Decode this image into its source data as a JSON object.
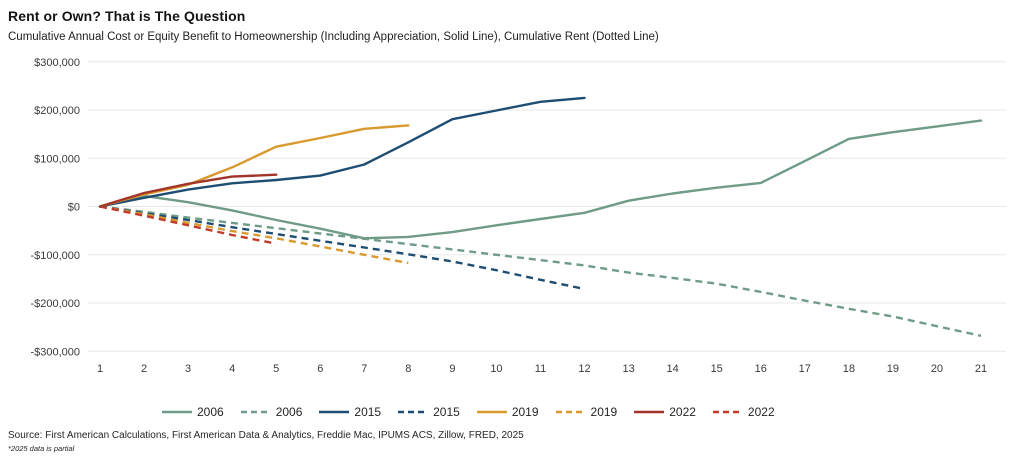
{
  "header": {
    "title": "Rent or Own? That is The Question",
    "subtitle": "Cumulative Annual Cost or Equity Benefit to Homeownership (Including Appreciation, Solid Line), Cumulative Rent (Dotted Line)"
  },
  "footer": {
    "source": "Source: First American Calculations, First American Data & Analytics, Freddie Mac, IPUMS ACS, Zillow, FRED, 2025",
    "footnote": "*2025 data is partial"
  },
  "colors": {
    "teal": "#6F9B87",
    "navy": "#1E4D74",
    "orange": "#D9992E",
    "dark_red": "#A3342A",
    "red": "#C13B2B",
    "gridline": "#E8E8E8",
    "axis_text": "#3A3A3A"
  },
  "chart_data": {
    "type": "line",
    "title": "Rent or Own? That is The Question",
    "xlabel": "",
    "ylabel": "",
    "x": [
      1,
      2,
      3,
      4,
      5,
      6,
      7,
      8,
      9,
      10,
      11,
      12,
      13,
      14,
      15,
      16,
      17,
      18,
      19,
      20,
      21
    ],
    "xlim": [
      1,
      21
    ],
    "ylim": [
      -300000,
      300000
    ],
    "ytick_step": 100000,
    "yticks": [
      300000,
      200000,
      100000,
      0,
      -100000,
      -200000,
      -300000
    ],
    "ytick_labels": [
      "$300,000",
      "$200,000",
      "$100,000",
      "$0",
      "-$100,000",
      "-$200,000",
      "-$300,000"
    ],
    "grid": "horizontal-only",
    "legend_position": "bottom",
    "series": [
      {
        "name": "2006",
        "style": "solid",
        "color": "#6F9B87",
        "meaning": "cumulative equity benefit to homeownership, 2006 cohort",
        "values": [
          0,
          22000,
          9000,
          -8000,
          -28000,
          -46000,
          -66000,
          -63000,
          -53000,
          -39000,
          -26000,
          -13000,
          12000,
          27000,
          39000,
          49000,
          94000,
          140000,
          154000,
          166000,
          178000
        ]
      },
      {
        "name": "2006",
        "style": "dashed",
        "color": "#6F9B87",
        "meaning": "cumulative rent, 2006 cohort",
        "values": [
          0,
          -11000,
          -23000,
          -34000,
          -45000,
          -56000,
          -67000,
          -78000,
          -89000,
          -100000,
          -111000,
          -122000,
          -137000,
          -148000,
          -160000,
          -177000,
          -195000,
          -212000,
          -228000,
          -248000,
          -268000
        ]
      },
      {
        "name": "2015",
        "style": "solid",
        "color": "#1E4D74",
        "meaning": "cumulative equity benefit to homeownership, 2015 cohort",
        "values": [
          0,
          18000,
          35000,
          48000,
          55000,
          64000,
          87000,
          133000,
          181000,
          199000,
          217000,
          225000
        ]
      },
      {
        "name": "2015",
        "style": "dashed",
        "color": "#1E4D74",
        "meaning": "cumulative rent, 2015 cohort",
        "values": [
          0,
          -14000,
          -28000,
          -43000,
          -57000,
          -71000,
          -85000,
          -99000,
          -114000,
          -132000,
          -152000,
          -171000
        ]
      },
      {
        "name": "2019",
        "style": "solid",
        "color": "#D9992E",
        "meaning": "cumulative equity benefit to homeownership, 2019 cohort",
        "values": [
          0,
          25000,
          45000,
          81000,
          124000,
          142000,
          161000,
          168000
        ]
      },
      {
        "name": "2019",
        "style": "dashed",
        "color": "#D9992E",
        "meaning": "cumulative rent, 2019 cohort",
        "values": [
          0,
          -16000,
          -34000,
          -51000,
          -66000,
          -83000,
          -100000,
          -117000
        ]
      },
      {
        "name": "2022",
        "style": "solid",
        "color": "#A3342A",
        "meaning": "cumulative equity benefit to homeownership, 2022 cohort",
        "values": [
          0,
          28000,
          47000,
          62000,
          66000
        ]
      },
      {
        "name": "2022",
        "style": "dashed",
        "color": "#C13B2B",
        "meaning": "cumulative rent, 2022 cohort",
        "values": [
          0,
          -19000,
          -39000,
          -59000,
          -77000
        ]
      }
    ]
  }
}
